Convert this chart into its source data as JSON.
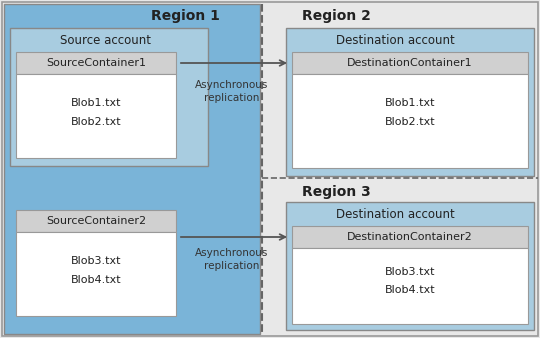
{
  "fig_bg": "#e8e8e8",
  "region1_bg": "#7ab4d8",
  "region2_bg": "#e8e8e8",
  "region3_bg": "#e8e8e8",
  "dest_acct_bg": "#a8cce0",
  "source_acct_bg": "#a8cce0",
  "container_header_bg": "#d0d0d0",
  "container_body_bg": "#ffffff",
  "border_color": "#aaaaaa",
  "dashed_color": "#666666",
  "arrow_color": "#555555",
  "region1_label": "Region 1",
  "region2_label": "Region 2",
  "region3_label": "Region 3",
  "source_acct_label": "Source account",
  "dest_acct_label": "Destination account",
  "src_cont1": "SourceContainer1",
  "src_cont2": "SourceContainer2",
  "dst_cont1": "DestinationContainer1",
  "dst_cont2": "DestinationContainer2",
  "src_blobs1": [
    "Blob1.txt",
    "Blob2.txt"
  ],
  "src_blobs2": [
    "Blob3.txt",
    "Blob4.txt"
  ],
  "dst_blobs1": [
    "Blob1.txt",
    "Blob2.txt"
  ],
  "dst_blobs2": [
    "Blob3.txt",
    "Blob4.txt"
  ],
  "async_label": "Asynchronous\nreplication"
}
